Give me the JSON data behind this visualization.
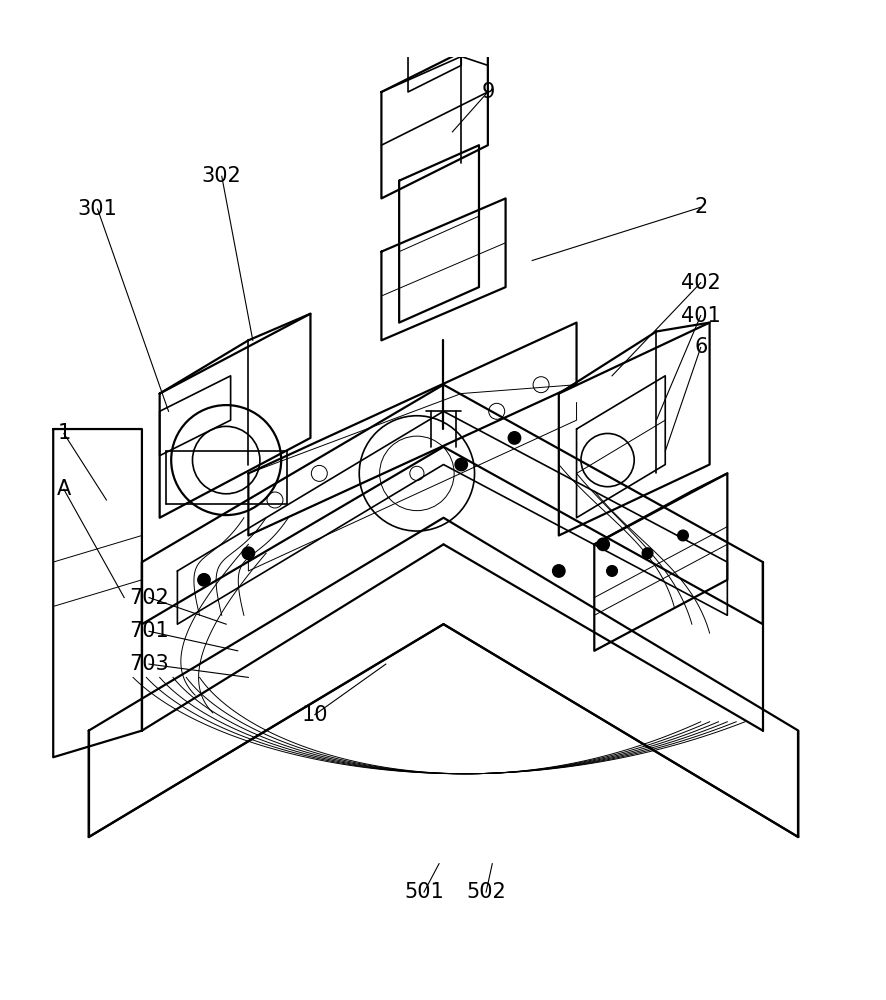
{
  "background_color": "#ffffff",
  "line_color": "#000000",
  "line_width": 1.2,
  "label_fontsize": 15,
  "figsize": [
    8.87,
    10.0
  ],
  "dpi": 100
}
